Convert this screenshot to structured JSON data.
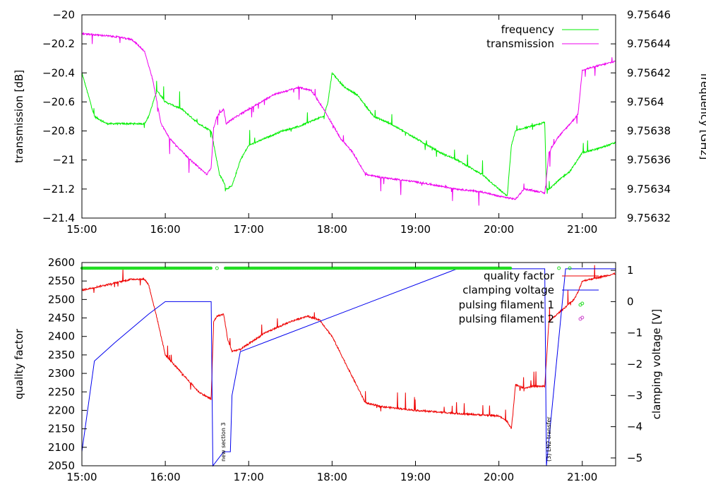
{
  "colors": {
    "frequency": "#00ee00",
    "transmission": "#ee00ee",
    "quality_factor": "#ee0000",
    "clamping_voltage": "#0000ee",
    "pulsing_filament_1": "#22dd22",
    "pulsing_filament_2": "#cc44cc"
  },
  "chart_data": [
    {
      "type": "line",
      "x_ticks": [
        "15:00",
        "16:00",
        "17:00",
        "18:00",
        "19:00",
        "20:00",
        "21:00"
      ],
      "xlim": [
        15.0,
        21.4
      ],
      "ylabel": "transmission [dB]",
      "ylim": [
        -21.4,
        -20.0
      ],
      "y_ticks": [
        "-20",
        "-20.2",
        "-20.4",
        "-20.6",
        "-20.8",
        "-21",
        "-21.2",
        "-21.4"
      ],
      "y2label": "frequency [GHz]",
      "y2lim": [
        9.75632,
        9.75646
      ],
      "y2_ticks": [
        "9.75646",
        "9.75644",
        "9.75642",
        "9.7564",
        "9.75638",
        "9.75636",
        "9.75634",
        "9.75632"
      ],
      "legend_position": "top-right",
      "series": [
        {
          "name": "frequency",
          "axis": "y2",
          "x": [
            15.0,
            15.05,
            15.15,
            15.3,
            15.5,
            15.75,
            15.8,
            15.9,
            16.0,
            16.2,
            16.4,
            16.55,
            16.6,
            16.65,
            16.7,
            16.73,
            16.8,
            16.9,
            17.0,
            17.2,
            17.4,
            17.6,
            17.8,
            17.9,
            17.95,
            18.0,
            18.15,
            18.3,
            18.5,
            18.7,
            19.0,
            19.3,
            19.5,
            19.8,
            20.0,
            20.1,
            20.15,
            20.2,
            20.3,
            20.45,
            20.55,
            20.57,
            20.6,
            20.8,
            20.85,
            21.0,
            21.2,
            21.4
          ],
          "values": [
            9.75642,
            9.75641,
            9.75639,
            9.756385,
            9.756385,
            9.756385,
            9.75639,
            9.756408,
            9.7564,
            9.756395,
            9.756385,
            9.75638,
            9.756365,
            9.75635,
            9.756345,
            9.75634,
            9.756342,
            9.75636,
            9.75637,
            9.756375,
            9.75638,
            9.756383,
            9.756388,
            9.75639,
            9.7564,
            9.75642,
            9.75641,
            9.756405,
            9.75639,
            9.756385,
            9.756375,
            9.756365,
            9.75636,
            9.75635,
            9.75634,
            9.756335,
            9.75637,
            9.75638,
            9.756382,
            9.756384,
            9.756386,
            9.75634,
            9.75634,
            9.75635,
            9.756352,
            9.756365,
            9.756368,
            9.756372
          ]
        },
        {
          "name": "transmission",
          "axis": "y",
          "x": [
            15.0,
            15.2,
            15.4,
            15.6,
            15.75,
            15.85,
            15.95,
            16.05,
            16.3,
            16.5,
            16.55,
            16.58,
            16.62,
            16.7,
            16.73,
            16.8,
            17.0,
            17.3,
            17.6,
            17.75,
            17.9,
            18.0,
            18.1,
            18.25,
            18.4,
            18.6,
            19.0,
            19.2,
            19.5,
            19.8,
            20.0,
            20.2,
            20.3,
            20.5,
            20.55,
            20.6,
            20.7,
            20.9,
            20.95,
            21.0,
            21.2,
            21.4
          ],
          "values": [
            -20.13,
            -20.14,
            -20.15,
            -20.17,
            -20.25,
            -20.45,
            -20.75,
            -20.85,
            -21.0,
            -21.1,
            -21.05,
            -20.78,
            -20.7,
            -20.65,
            -20.75,
            -20.72,
            -20.65,
            -20.55,
            -20.5,
            -20.52,
            -20.65,
            -20.75,
            -20.85,
            -20.95,
            -21.1,
            -21.12,
            -21.15,
            -21.17,
            -21.2,
            -21.22,
            -21.25,
            -21.27,
            -21.2,
            -21.22,
            -21.23,
            -20.95,
            -20.85,
            -20.72,
            -20.68,
            -20.38,
            -20.35,
            -20.32
          ]
        }
      ]
    },
    {
      "type": "line",
      "x_ticks": [
        "15:00",
        "16:00",
        "17:00",
        "18:00",
        "19:00",
        "20:00",
        "21:00"
      ],
      "xlim": [
        15.0,
        21.4
      ],
      "ylabel": "quality factor",
      "ylim": [
        2050,
        2600
      ],
      "y_ticks": [
        "2600",
        "2550",
        "2500",
        "2450",
        "2400",
        "2350",
        "2300",
        "2250",
        "2200",
        "2150",
        "2100",
        "2050"
      ],
      "y2label": "clamping voltage [V]",
      "y2lim": [
        -5.25,
        1.25
      ],
      "y2_ticks": [
        "1",
        "0",
        "-1",
        "-2",
        "-3",
        "-4",
        "-5"
      ],
      "legend_position": "top-right",
      "series": [
        {
          "name": "quality factor",
          "axis": "y",
          "x": [
            15.0,
            15.2,
            15.4,
            15.6,
            15.75,
            15.8,
            15.9,
            16.0,
            16.2,
            16.4,
            16.55,
            16.58,
            16.62,
            16.7,
            16.75,
            16.8,
            16.9,
            17.0,
            17.2,
            17.5,
            17.7,
            17.85,
            18.0,
            18.2,
            18.4,
            18.6,
            19.0,
            19.3,
            19.6,
            20.0,
            20.1,
            20.15,
            20.2,
            20.3,
            20.4,
            20.55,
            20.6,
            20.8,
            20.9,
            20.95,
            21.0,
            21.2,
            21.4
          ],
          "values": [
            2525,
            2535,
            2545,
            2555,
            2555,
            2540,
            2450,
            2350,
            2300,
            2250,
            2230,
            2440,
            2455,
            2460,
            2390,
            2360,
            2365,
            2380,
            2410,
            2440,
            2455,
            2445,
            2400,
            2310,
            2220,
            2210,
            2200,
            2195,
            2190,
            2185,
            2170,
            2150,
            2270,
            2260,
            2265,
            2265,
            2440,
            2480,
            2500,
            2520,
            2550,
            2560,
            2570
          ]
        },
        {
          "name": "clamping voltage",
          "axis": "y2",
          "x": [
            15.0,
            15.15,
            15.4,
            15.8,
            16.0,
            16.55,
            16.57,
            16.7,
            16.78,
            16.8,
            16.9,
            17.0,
            19.5,
            20.0,
            20.55,
            20.57,
            20.8,
            21.4
          ],
          "values": [
            -4.8,
            -1.9,
            -1.3,
            -0.4,
            0.0,
            0.0,
            -5.25,
            -4.8,
            -4.8,
            -3.0,
            -1.6,
            -1.5,
            1.05,
            1.05,
            1.05,
            -5.25,
            1.05,
            1.05
          ]
        },
        {
          "name": "pulsing filament 1",
          "axis": "dots",
          "x": [
            15.0,
            16.55,
            16.62,
            16.72,
            20.15,
            20.72,
            20.85,
            21.0,
            21.2,
            21.4
          ],
          "values": [
            1,
            1,
            1,
            1,
            1,
            1,
            1,
            1,
            1,
            1
          ]
        },
        {
          "name": "pulsing filament 2",
          "axis": "dots",
          "x": [
            21.0
          ],
          "values": [
            1
          ]
        }
      ],
      "annotations": [
        {
          "text": "new section 3",
          "x": 16.72
        },
        {
          "text": "(3) LN2 transfer",
          "x": 20.62
        }
      ]
    }
  ]
}
